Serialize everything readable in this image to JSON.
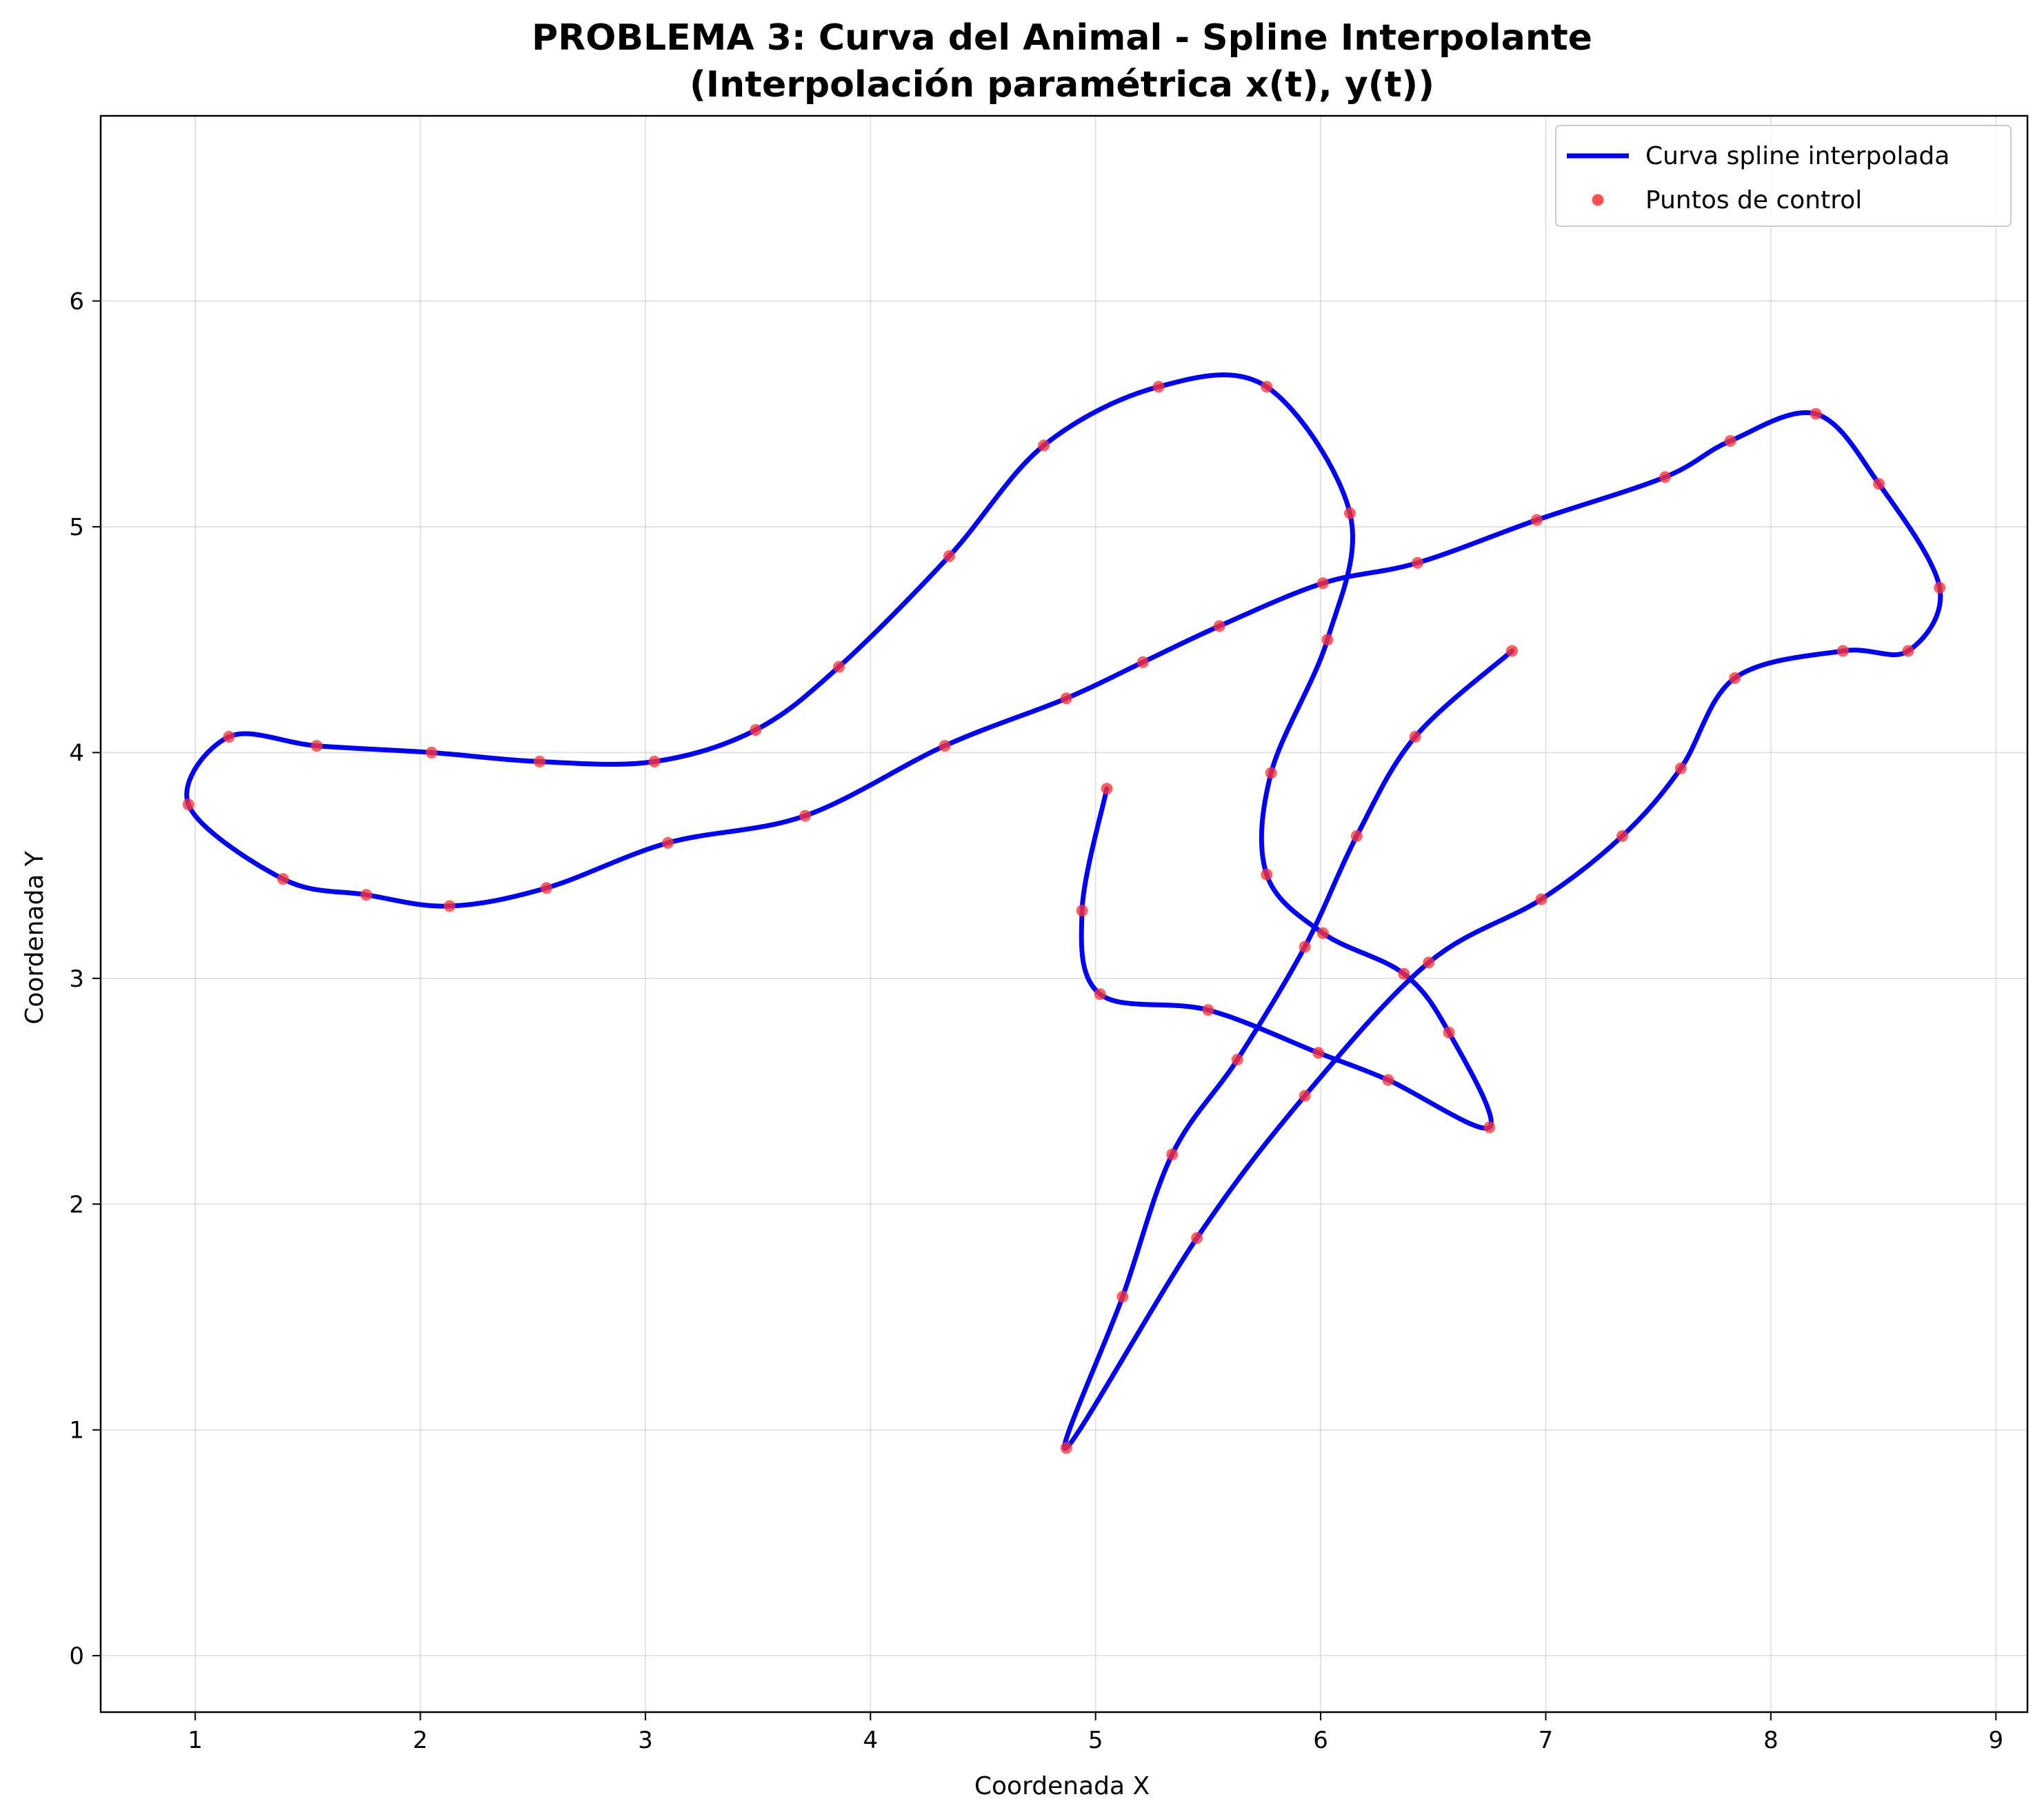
{
  "chart_data": {
    "type": "line",
    "title_line1": "PROBLEMA 3: Curva del Animal - Spline Interpolante",
    "title_line2": "(Interpolación paramétrica x(t), y(t))",
    "xlabel": "Coordenada X",
    "ylabel": "Coordenada Y",
    "xlim": [
      0.58,
      9.14
    ],
    "ylim": [
      -0.25,
      6.82
    ],
    "xticks": [
      1,
      2,
      3,
      4,
      5,
      6,
      7,
      8,
      9
    ],
    "yticks": [
      0,
      1,
      2,
      3,
      4,
      5,
      6
    ],
    "grid": true,
    "legend_position": "top-right",
    "series": [
      {
        "name": "Curva spline interpolada",
        "kind": "line",
        "color": "#0000ff"
      },
      {
        "name": "Puntos de control",
        "kind": "points",
        "color": "#ff3333"
      }
    ],
    "points": [
      [
        5.05,
        3.84
      ],
      [
        4.94,
        3.3
      ],
      [
        5.02,
        2.93
      ],
      [
        5.5,
        2.86
      ],
      [
        5.99,
        2.67
      ],
      [
        6.3,
        2.55
      ],
      [
        6.75,
        2.34
      ],
      [
        6.57,
        2.76
      ],
      [
        6.37,
        3.02
      ],
      [
        6.01,
        3.2
      ],
      [
        5.76,
        3.46
      ],
      [
        5.78,
        3.91
      ],
      [
        6.03,
        4.5
      ],
      [
        6.13,
        5.06
      ],
      [
        5.76,
        5.62
      ],
      [
        5.28,
        5.62
      ],
      [
        4.77,
        5.36
      ],
      [
        4.35,
        4.87
      ],
      [
        3.86,
        4.38
      ],
      [
        3.49,
        4.1
      ],
      [
        3.04,
        3.96
      ],
      [
        2.53,
        3.96
      ],
      [
        2.05,
        4.0
      ],
      [
        1.54,
        4.03
      ],
      [
        1.15,
        4.07
      ],
      [
        0.97,
        3.77
      ],
      [
        1.39,
        3.44
      ],
      [
        1.76,
        3.37
      ],
      [
        2.13,
        3.32
      ],
      [
        2.56,
        3.4
      ],
      [
        3.1,
        3.6
      ],
      [
        3.71,
        3.72
      ],
      [
        4.33,
        4.03
      ],
      [
        4.87,
        4.24
      ],
      [
        5.21,
        4.4
      ],
      [
        5.55,
        4.56
      ],
      [
        6.01,
        4.75
      ],
      [
        6.43,
        4.84
      ],
      [
        6.96,
        5.03
      ],
      [
        7.53,
        5.22
      ],
      [
        7.82,
        5.38
      ],
      [
        8.2,
        5.5
      ],
      [
        8.48,
        5.19
      ],
      [
        8.75,
        4.73
      ],
      [
        8.61,
        4.45
      ],
      [
        8.32,
        4.45
      ],
      [
        7.84,
        4.33
      ],
      [
        7.6,
        3.93
      ],
      [
        7.34,
        3.63
      ],
      [
        6.98,
        3.35
      ],
      [
        6.48,
        3.07
      ],
      [
        5.93,
        2.48
      ],
      [
        5.45,
        1.85
      ],
      [
        4.87,
        0.92
      ],
      [
        5.12,
        1.59
      ],
      [
        5.34,
        2.22
      ],
      [
        5.63,
        2.64
      ],
      [
        5.93,
        3.14
      ],
      [
        6.16,
        3.63
      ],
      [
        6.42,
        4.07
      ],
      [
        6.85,
        4.45
      ]
    ]
  }
}
